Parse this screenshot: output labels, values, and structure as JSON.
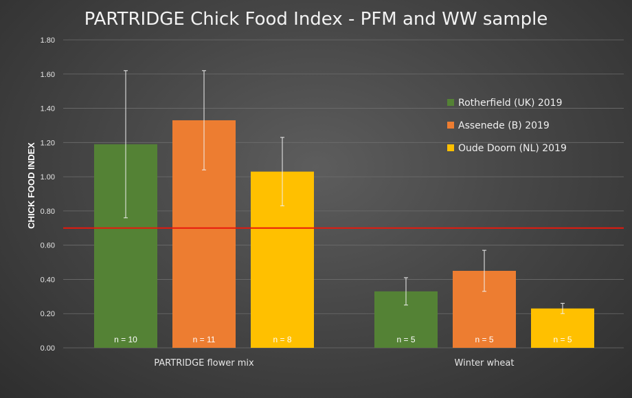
{
  "chart_data": {
    "type": "bar",
    "title": "PARTRIDGE Chick Food Index - PFM and WW sample",
    "ylabel": "CHICK FOOD INDEX",
    "xlabel": "",
    "ylim": [
      0,
      1.8
    ],
    "yticks": [
      "0.00",
      "0.20",
      "0.40",
      "0.60",
      "0.80",
      "1.00",
      "1.20",
      "1.40",
      "1.60",
      "1.80"
    ],
    "categories": [
      "PARTRIDGE flower mix",
      "Winter wheat"
    ],
    "series": [
      {
        "name": "Rotherfield (UK) 2019",
        "color": "#548235",
        "values": [
          1.19,
          0.33
        ],
        "error_low": [
          0.76,
          0.25
        ],
        "error_high": [
          1.62,
          0.41
        ],
        "n_labels": [
          "n = 10",
          "n = 5"
        ]
      },
      {
        "name": "Assenede (B) 2019",
        "color": "#ed7d31",
        "values": [
          1.33,
          0.45
        ],
        "error_low": [
          1.04,
          0.33
        ],
        "error_high": [
          1.62,
          0.57
        ],
        "n_labels": [
          "n = 11",
          "n = 5"
        ]
      },
      {
        "name": "Oude Doorn (NL) 2019",
        "color": "#ffc000",
        "values": [
          1.03,
          0.23
        ],
        "error_low": [
          0.83,
          0.2
        ],
        "error_high": [
          1.23,
          0.26
        ],
        "n_labels": [
          "n = 8",
          "n = 5"
        ]
      }
    ],
    "reference_line": {
      "value": 0.7,
      "color": "#e8180c"
    },
    "grid": true,
    "legend_position": "right"
  }
}
